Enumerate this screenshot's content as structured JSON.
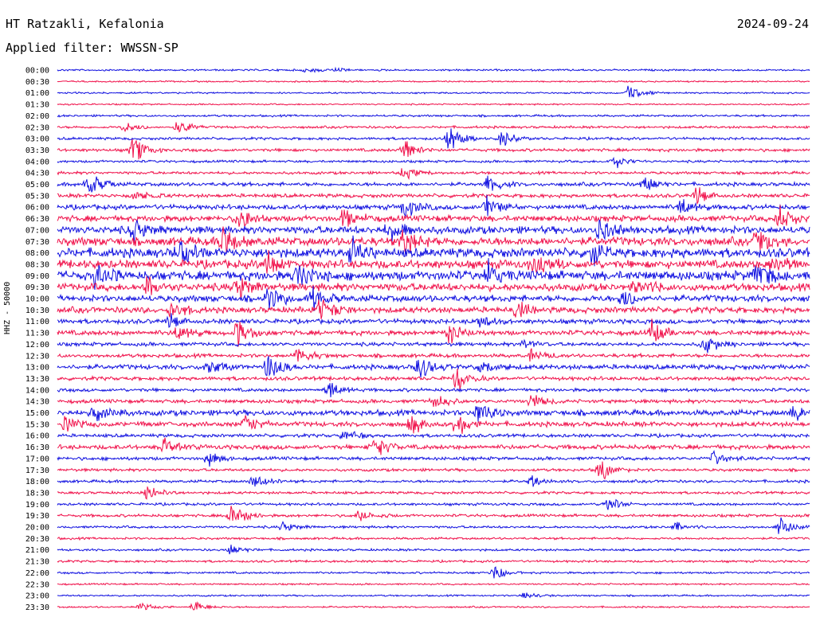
{
  "header": {
    "station": "HT Ratzakli, Kefalonia",
    "date": "2024-09-24",
    "filter": "Applied filter: WWSSN-SP"
  },
  "axis_label": "HHZ - 50000",
  "colors": {
    "blue": "#1010e0",
    "red": "#f0104a"
  },
  "rows": [
    {
      "time": "00:00",
      "color": "blue",
      "amp": 1.0,
      "events": [
        {
          "x": 0.33,
          "a": 3
        },
        {
          "x": 0.37,
          "a": 2
        }
      ]
    },
    {
      "time": "00:30",
      "color": "red",
      "amp": 0.8,
      "events": []
    },
    {
      "time": "01:00",
      "color": "blue",
      "amp": 0.9,
      "events": [
        {
          "x": 0.76,
          "a": 8
        }
      ]
    },
    {
      "time": "01:30",
      "color": "red",
      "amp": 0.8,
      "events": []
    },
    {
      "time": "02:00",
      "color": "blue",
      "amp": 1.1,
      "events": []
    },
    {
      "time": "02:30",
      "color": "red",
      "amp": 1.3,
      "events": [
        {
          "x": 0.09,
          "a": 6
        },
        {
          "x": 0.16,
          "a": 8
        }
      ]
    },
    {
      "time": "03:00",
      "color": "blue",
      "amp": 1.4,
      "events": [
        {
          "x": 0.52,
          "a": 14
        },
        {
          "x": 0.59,
          "a": 10
        }
      ]
    },
    {
      "time": "03:30",
      "color": "red",
      "amp": 1.6,
      "events": [
        {
          "x": 0.1,
          "a": 14
        },
        {
          "x": 0.46,
          "a": 12
        }
      ]
    },
    {
      "time": "04:00",
      "color": "blue",
      "amp": 1.3,
      "events": [
        {
          "x": 0.74,
          "a": 7
        }
      ]
    },
    {
      "time": "04:30",
      "color": "red",
      "amp": 1.5,
      "events": [
        {
          "x": 0.46,
          "a": 6
        }
      ]
    },
    {
      "time": "05:00",
      "color": "blue",
      "amp": 2.0,
      "events": [
        {
          "x": 0.04,
          "a": 14
        },
        {
          "x": 0.57,
          "a": 10
        },
        {
          "x": 0.78,
          "a": 8
        }
      ]
    },
    {
      "time": "05:30",
      "color": "red",
      "amp": 2.0,
      "events": [
        {
          "x": 0.1,
          "a": 6
        },
        {
          "x": 0.85,
          "a": 10
        }
      ]
    },
    {
      "time": "06:00",
      "color": "blue",
      "amp": 2.6,
      "events": [
        {
          "x": 0.46,
          "a": 12
        },
        {
          "x": 0.57,
          "a": 10
        },
        {
          "x": 0.83,
          "a": 10
        }
      ]
    },
    {
      "time": "06:30",
      "color": "red",
      "amp": 3.2,
      "events": [
        {
          "x": 0.24,
          "a": 12
        },
        {
          "x": 0.38,
          "a": 10
        },
        {
          "x": 0.96,
          "a": 14
        }
      ]
    },
    {
      "time": "07:00",
      "color": "blue",
      "amp": 4.0,
      "events": [
        {
          "x": 0.1,
          "a": 12
        },
        {
          "x": 0.44,
          "a": 10
        },
        {
          "x": 0.72,
          "a": 12
        }
      ]
    },
    {
      "time": "07:30",
      "color": "red",
      "amp": 4.5,
      "events": [
        {
          "x": 0.22,
          "a": 14
        },
        {
          "x": 0.46,
          "a": 12
        },
        {
          "x": 0.93,
          "a": 14
        }
      ]
    },
    {
      "time": "08:00",
      "color": "blue",
      "amp": 5.0,
      "events": [
        {
          "x": 0.16,
          "a": 16
        },
        {
          "x": 0.39,
          "a": 14
        },
        {
          "x": 0.71,
          "a": 12
        }
      ]
    },
    {
      "time": "08:30",
      "color": "red",
      "amp": 4.5,
      "events": [
        {
          "x": 0.28,
          "a": 12
        },
        {
          "x": 0.63,
          "a": 10
        },
        {
          "x": 0.95,
          "a": 12
        }
      ]
    },
    {
      "time": "09:00",
      "color": "blue",
      "amp": 5.0,
      "events": [
        {
          "x": 0.05,
          "a": 14
        },
        {
          "x": 0.32,
          "a": 12
        },
        {
          "x": 0.57,
          "a": 14
        },
        {
          "x": 0.93,
          "a": 12
        }
      ]
    },
    {
      "time": "09:30",
      "color": "red",
      "amp": 4.0,
      "events": [
        {
          "x": 0.12,
          "a": 10
        },
        {
          "x": 0.24,
          "a": 12
        },
        {
          "x": 0.77,
          "a": 10
        }
      ]
    },
    {
      "time": "10:00",
      "color": "blue",
      "amp": 3.5,
      "events": [
        {
          "x": 0.28,
          "a": 14
        },
        {
          "x": 0.34,
          "a": 12
        },
        {
          "x": 0.75,
          "a": 12
        }
      ]
    },
    {
      "time": "10:30",
      "color": "red",
      "amp": 3.2,
      "events": [
        {
          "x": 0.15,
          "a": 12
        },
        {
          "x": 0.35,
          "a": 14
        },
        {
          "x": 0.61,
          "a": 10
        }
      ]
    },
    {
      "time": "11:00",
      "color": "blue",
      "amp": 2.5,
      "events": [
        {
          "x": 0.15,
          "a": 8
        },
        {
          "x": 0.56,
          "a": 6
        }
      ]
    },
    {
      "time": "11:30",
      "color": "red",
      "amp": 2.6,
      "events": [
        {
          "x": 0.16,
          "a": 10
        },
        {
          "x": 0.24,
          "a": 14
        },
        {
          "x": 0.52,
          "a": 10
        },
        {
          "x": 0.79,
          "a": 12
        }
      ]
    },
    {
      "time": "12:00",
      "color": "blue",
      "amp": 2.0,
      "events": [
        {
          "x": 0.62,
          "a": 6
        },
        {
          "x": 0.86,
          "a": 10
        }
      ]
    },
    {
      "time": "12:30",
      "color": "red",
      "amp": 2.0,
      "events": [
        {
          "x": 0.32,
          "a": 8
        },
        {
          "x": 0.63,
          "a": 6
        }
      ]
    },
    {
      "time": "13:00",
      "color": "blue",
      "amp": 2.6,
      "events": [
        {
          "x": 0.2,
          "a": 8
        },
        {
          "x": 0.28,
          "a": 14
        },
        {
          "x": 0.48,
          "a": 14
        },
        {
          "x": 0.56,
          "a": 12
        }
      ]
    },
    {
      "time": "13:30",
      "color": "red",
      "amp": 2.0,
      "events": [
        {
          "x": 0.53,
          "a": 12
        }
      ]
    },
    {
      "time": "14:00",
      "color": "blue",
      "amp": 1.8,
      "events": [
        {
          "x": 0.36,
          "a": 10
        }
      ]
    },
    {
      "time": "14:30",
      "color": "red",
      "amp": 2.0,
      "events": [
        {
          "x": 0.5,
          "a": 8
        },
        {
          "x": 0.63,
          "a": 8
        }
      ]
    },
    {
      "time": "15:00",
      "color": "blue",
      "amp": 3.0,
      "events": [
        {
          "x": 0.05,
          "a": 8
        },
        {
          "x": 0.56,
          "a": 14
        },
        {
          "x": 0.98,
          "a": 10
        }
      ]
    },
    {
      "time": "15:30",
      "color": "red",
      "amp": 2.6,
      "events": [
        {
          "x": 0.01,
          "a": 8
        },
        {
          "x": 0.25,
          "a": 10
        },
        {
          "x": 0.47,
          "a": 10
        },
        {
          "x": 0.53,
          "a": 12
        }
      ]
    },
    {
      "time": "16:00",
      "color": "blue",
      "amp": 1.8,
      "events": [
        {
          "x": 0.38,
          "a": 6
        }
      ]
    },
    {
      "time": "16:30",
      "color": "red",
      "amp": 2.4,
      "events": [
        {
          "x": 0.14,
          "a": 8
        },
        {
          "x": 0.42,
          "a": 12
        }
      ]
    },
    {
      "time": "17:00",
      "color": "blue",
      "amp": 1.8,
      "events": [
        {
          "x": 0.2,
          "a": 8
        },
        {
          "x": 0.87,
          "a": 8
        }
      ]
    },
    {
      "time": "17:30",
      "color": "red",
      "amp": 1.5,
      "events": [
        {
          "x": 0.72,
          "a": 12
        }
      ]
    },
    {
      "time": "18:00",
      "color": "blue",
      "amp": 1.5,
      "events": [
        {
          "x": 0.26,
          "a": 8
        },
        {
          "x": 0.63,
          "a": 6
        }
      ]
    },
    {
      "time": "18:30",
      "color": "red",
      "amp": 1.4,
      "events": [
        {
          "x": 0.12,
          "a": 8
        }
      ]
    },
    {
      "time": "19:00",
      "color": "blue",
      "amp": 1.4,
      "events": [
        {
          "x": 0.73,
          "a": 8
        }
      ]
    },
    {
      "time": "19:30",
      "color": "red",
      "amp": 1.5,
      "events": [
        {
          "x": 0.23,
          "a": 14
        },
        {
          "x": 0.4,
          "a": 6
        }
      ]
    },
    {
      "time": "20:00",
      "color": "blue",
      "amp": 1.3,
      "events": [
        {
          "x": 0.3,
          "a": 5
        },
        {
          "x": 0.82,
          "a": 5
        },
        {
          "x": 0.96,
          "a": 12
        }
      ]
    },
    {
      "time": "20:30",
      "color": "red",
      "amp": 1.2,
      "events": []
    },
    {
      "time": "21:00",
      "color": "blue",
      "amp": 1.2,
      "events": [
        {
          "x": 0.23,
          "a": 5
        }
      ]
    },
    {
      "time": "21:30",
      "color": "red",
      "amp": 1.2,
      "events": []
    },
    {
      "time": "22:00",
      "color": "blue",
      "amp": 1.1,
      "events": [
        {
          "x": 0.58,
          "a": 8
        }
      ]
    },
    {
      "time": "22:30",
      "color": "red",
      "amp": 0.9,
      "events": []
    },
    {
      "time": "23:00",
      "color": "blue",
      "amp": 0.9,
      "events": [
        {
          "x": 0.62,
          "a": 4
        }
      ]
    },
    {
      "time": "23:30",
      "color": "red",
      "amp": 0.9,
      "events": [
        {
          "x": 0.11,
          "a": 4
        },
        {
          "x": 0.18,
          "a": 6
        }
      ]
    }
  ]
}
